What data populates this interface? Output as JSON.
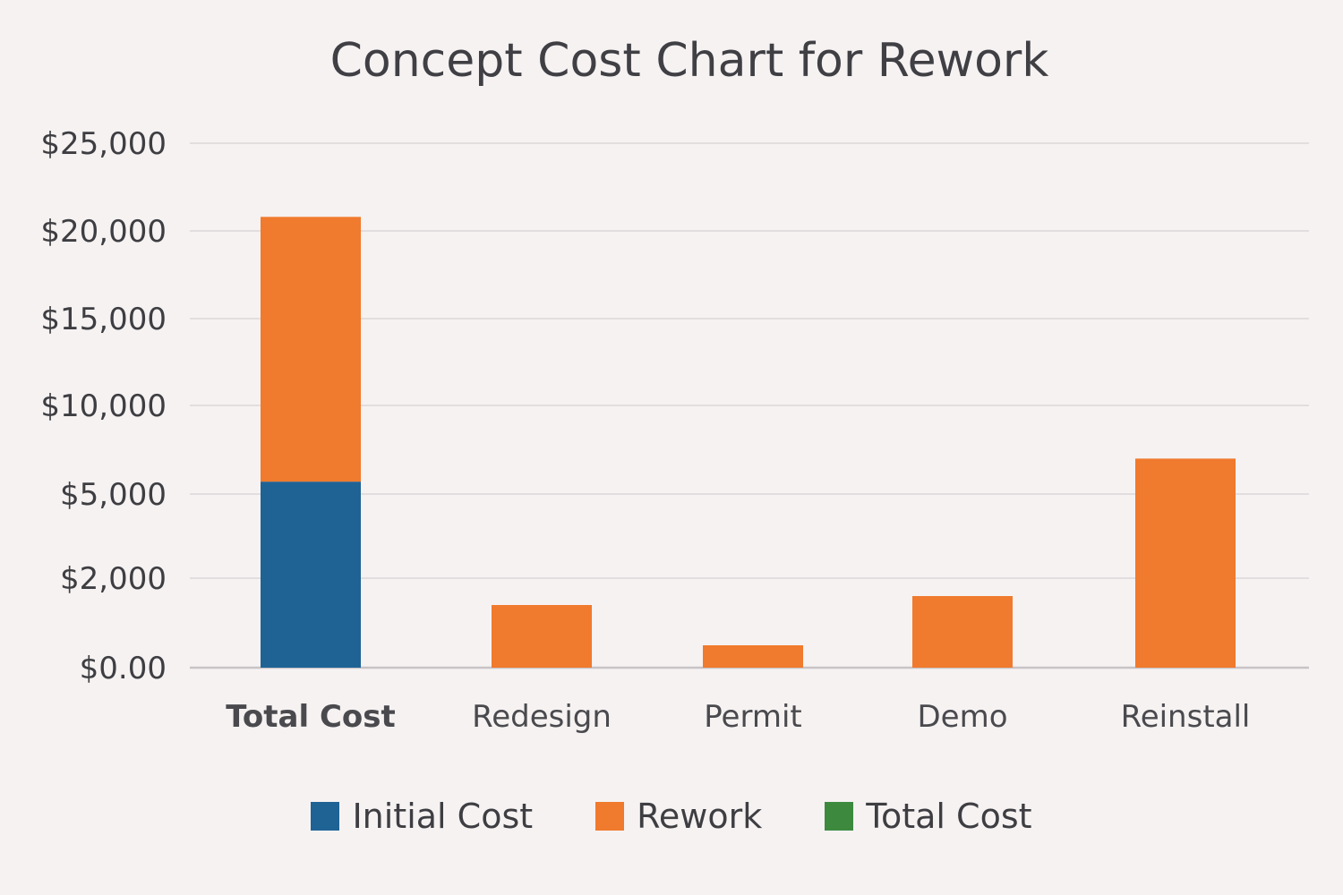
{
  "chart_data": {
    "type": "bar",
    "title": "Concept Cost Chart for Rework",
    "categories": [
      "Total Cost",
      "Redesign",
      "Permit",
      "Demo",
      "Reinstall"
    ],
    "tick_labels": [
      "$0.00",
      "$2,000",
      "$5,000",
      "$10,000",
      "$15,000",
      "$20,000",
      "$25,000"
    ],
    "tick_values": [
      0,
      2000,
      5000,
      10000,
      15000,
      20000,
      25000
    ],
    "stacked": true,
    "series": [
      {
        "name": "Initial Cost",
        "color": "#1f6395",
        "values": [
          5700,
          0,
          0,
          0,
          0
        ]
      },
      {
        "name": "Rework",
        "color": "#f07a2d",
        "values": [
          15100,
          1400,
          500,
          1600,
          7000
        ]
      },
      {
        "name": "Total Cost",
        "color": "#3d8a3f",
        "values": [
          0,
          0,
          0,
          0,
          0
        ]
      }
    ],
    "grid": true,
    "legend_position": "bottom"
  }
}
